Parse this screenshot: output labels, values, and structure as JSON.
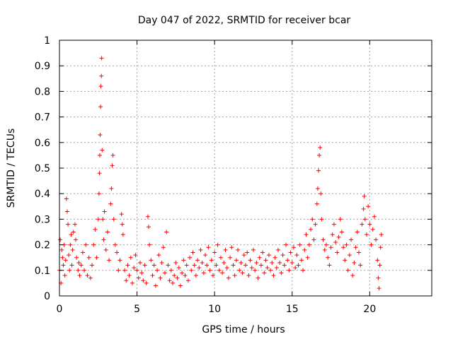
{
  "chart_data": {
    "type": "scatter",
    "title": "Day 047 of 2022, SRMTID for receiver bcar",
    "xlabel": "GPS time / hours",
    "ylabel": "SRMTID / TECUs",
    "xlim": [
      0,
      24
    ],
    "ylim": [
      0,
      1
    ],
    "xticks": [
      0,
      5,
      10,
      15,
      20
    ],
    "yticks": [
      0,
      0.1,
      0.2,
      0.3,
      0.4,
      0.5,
      0.6,
      0.7,
      0.8,
      0.9,
      1
    ],
    "grid": true,
    "marker": "+",
    "color": "#ff0000",
    "series": [
      {
        "name": "SRMTID",
        "points": [
          [
            0.0,
            0.1
          ],
          [
            0.05,
            0.22
          ],
          [
            0.1,
            0.05
          ],
          [
            0.15,
            0.18
          ],
          [
            0.2,
            0.15
          ],
          [
            0.25,
            0.12
          ],
          [
            0.3,
            0.2
          ],
          [
            0.35,
            0.08
          ],
          [
            0.4,
            0.14
          ],
          [
            0.45,
            0.38
          ],
          [
            0.5,
            0.33
          ],
          [
            0.55,
            0.28
          ],
          [
            0.6,
            0.16
          ],
          [
            0.65,
            0.1
          ],
          [
            0.7,
            0.2
          ],
          [
            0.75,
            0.24
          ],
          [
            0.8,
            0.12
          ],
          [
            0.85,
            0.18
          ],
          [
            0.9,
            0.25
          ],
          [
            1.0,
            0.28
          ],
          [
            1.05,
            0.22
          ],
          [
            1.1,
            0.15
          ],
          [
            1.2,
            0.1
          ],
          [
            1.25,
            0.13
          ],
          [
            1.3,
            0.08
          ],
          [
            1.4,
            0.12
          ],
          [
            1.5,
            0.17
          ],
          [
            1.6,
            0.1
          ],
          [
            1.7,
            0.2
          ],
          [
            1.8,
            0.08
          ],
          [
            1.9,
            0.15
          ],
          [
            2.0,
            0.07
          ],
          [
            2.1,
            0.12
          ],
          [
            2.2,
            0.2
          ],
          [
            2.3,
            0.26
          ],
          [
            2.4,
            0.15
          ],
          [
            2.5,
            0.3
          ],
          [
            2.55,
            0.4
          ],
          [
            2.58,
            0.48
          ],
          [
            2.6,
            0.55
          ],
          [
            2.62,
            0.63
          ],
          [
            2.65,
            0.74
          ],
          [
            2.67,
            0.82
          ],
          [
            2.7,
            0.86
          ],
          [
            2.72,
            0.93
          ],
          [
            2.75,
            0.57
          ],
          [
            2.8,
            0.3
          ],
          [
            2.85,
            0.22
          ],
          [
            2.9,
            0.33
          ],
          [
            3.0,
            0.18
          ],
          [
            3.1,
            0.25
          ],
          [
            3.2,
            0.14
          ],
          [
            3.3,
            0.36
          ],
          [
            3.35,
            0.42
          ],
          [
            3.4,
            0.51
          ],
          [
            3.45,
            0.55
          ],
          [
            3.5,
            0.3
          ],
          [
            3.6,
            0.2
          ],
          [
            3.7,
            0.17
          ],
          [
            3.8,
            0.1
          ],
          [
            3.9,
            0.14
          ],
          [
            4.0,
            0.32
          ],
          [
            4.05,
            0.28
          ],
          [
            4.1,
            0.24
          ],
          [
            4.2,
            0.1
          ],
          [
            4.3,
            0.06
          ],
          [
            4.4,
            0.12
          ],
          [
            4.5,
            0.08
          ],
          [
            4.6,
            0.15
          ],
          [
            4.7,
            0.05
          ],
          [
            4.8,
            0.11
          ],
          [
            4.9,
            0.16
          ],
          [
            5.0,
            0.1
          ],
          [
            5.1,
            0.07
          ],
          [
            5.2,
            0.13
          ],
          [
            5.3,
            0.09
          ],
          [
            5.4,
            0.06
          ],
          [
            5.5,
            0.12
          ],
          [
            5.6,
            0.05
          ],
          [
            5.7,
            0.31
          ],
          [
            5.75,
            0.27
          ],
          [
            5.8,
            0.2
          ],
          [
            5.9,
            0.14
          ],
          [
            6.0,
            0.08
          ],
          [
            6.1,
            0.12
          ],
          [
            6.2,
            0.04
          ],
          [
            6.3,
            0.1
          ],
          [
            6.4,
            0.16
          ],
          [
            6.5,
            0.07
          ],
          [
            6.6,
            0.13
          ],
          [
            6.7,
            0.19
          ],
          [
            6.8,
            0.09
          ],
          [
            6.9,
            0.25
          ],
          [
            7.0,
            0.12
          ],
          [
            7.1,
            0.06
          ],
          [
            7.2,
            0.1
          ],
          [
            7.3,
            0.05
          ],
          [
            7.4,
            0.08
          ],
          [
            7.5,
            0.13
          ],
          [
            7.6,
            0.07
          ],
          [
            7.7,
            0.11
          ],
          [
            7.8,
            0.04
          ],
          [
            7.9,
            0.09
          ],
          [
            8.0,
            0.14
          ],
          [
            8.1,
            0.08
          ],
          [
            8.2,
            0.12
          ],
          [
            8.3,
            0.06
          ],
          [
            8.4,
            0.15
          ],
          [
            8.5,
            0.1
          ],
          [
            8.6,
            0.17
          ],
          [
            8.7,
            0.12
          ],
          [
            8.8,
            0.08
          ],
          [
            8.9,
            0.14
          ],
          [
            9.0,
            0.11
          ],
          [
            9.1,
            0.18
          ],
          [
            9.2,
            0.13
          ],
          [
            9.3,
            0.09
          ],
          [
            9.4,
            0.16
          ],
          [
            9.5,
            0.12
          ],
          [
            9.6,
            0.19
          ],
          [
            9.7,
            0.1
          ],
          [
            9.8,
            0.14
          ],
          [
            9.9,
            0.08
          ],
          [
            10.0,
            0.17
          ],
          [
            10.1,
            0.12
          ],
          [
            10.2,
            0.2
          ],
          [
            10.3,
            0.1
          ],
          [
            10.4,
            0.15
          ],
          [
            10.5,
            0.09
          ],
          [
            10.6,
            0.13
          ],
          [
            10.7,
            0.18
          ],
          [
            10.8,
            0.11
          ],
          [
            10.9,
            0.07
          ],
          [
            11.0,
            0.15
          ],
          [
            11.1,
            0.19
          ],
          [
            11.2,
            0.12
          ],
          [
            11.3,
            0.08
          ],
          [
            11.4,
            0.14
          ],
          [
            11.5,
            0.18
          ],
          [
            11.6,
            0.1
          ],
          [
            11.7,
            0.13
          ],
          [
            11.8,
            0.09
          ],
          [
            11.9,
            0.16
          ],
          [
            12.0,
            0.12
          ],
          [
            12.1,
            0.17
          ],
          [
            12.2,
            0.08
          ],
          [
            12.3,
            0.14
          ],
          [
            12.4,
            0.11
          ],
          [
            12.5,
            0.18
          ],
          [
            12.6,
            0.1
          ],
          [
            12.7,
            0.13
          ],
          [
            12.8,
            0.07
          ],
          [
            12.9,
            0.15
          ],
          [
            13.0,
            0.12
          ],
          [
            13.1,
            0.17
          ],
          [
            13.2,
            0.09
          ],
          [
            13.3,
            0.14
          ],
          [
            13.4,
            0.11
          ],
          [
            13.5,
            0.16
          ],
          [
            13.6,
            0.1
          ],
          [
            13.7,
            0.13
          ],
          [
            13.8,
            0.08
          ],
          [
            13.9,
            0.15
          ],
          [
            14.0,
            0.11
          ],
          [
            14.1,
            0.18
          ],
          [
            14.2,
            0.13
          ],
          [
            14.3,
            0.09
          ],
          [
            14.4,
            0.16
          ],
          [
            14.5,
            0.12
          ],
          [
            14.6,
            0.2
          ],
          [
            14.7,
            0.14
          ],
          [
            14.8,
            0.1
          ],
          [
            14.9,
            0.17
          ],
          [
            15.0,
            0.13
          ],
          [
            15.1,
            0.19
          ],
          [
            15.2,
            0.11
          ],
          [
            15.3,
            0.16
          ],
          [
            15.4,
            0.12
          ],
          [
            15.5,
            0.2
          ],
          [
            15.6,
            0.14
          ],
          [
            15.7,
            0.1
          ],
          [
            15.8,
            0.18
          ],
          [
            15.9,
            0.24
          ],
          [
            16.0,
            0.15
          ],
          [
            16.1,
            0.2
          ],
          [
            16.2,
            0.26
          ],
          [
            16.3,
            0.3
          ],
          [
            16.4,
            0.22
          ],
          [
            16.5,
            0.28
          ],
          [
            16.6,
            0.36
          ],
          [
            16.65,
            0.42
          ],
          [
            16.7,
            0.49
          ],
          [
            16.75,
            0.55
          ],
          [
            16.8,
            0.58
          ],
          [
            16.85,
            0.4
          ],
          [
            16.9,
            0.3
          ],
          [
            17.0,
            0.22
          ],
          [
            17.1,
            0.18
          ],
          [
            17.2,
            0.2
          ],
          [
            17.3,
            0.15
          ],
          [
            17.4,
            0.12
          ],
          [
            17.5,
            0.19
          ],
          [
            17.6,
            0.24
          ],
          [
            17.7,
            0.28
          ],
          [
            17.8,
            0.21
          ],
          [
            17.9,
            0.17
          ],
          [
            18.0,
            0.23
          ],
          [
            18.1,
            0.3
          ],
          [
            18.2,
            0.25
          ],
          [
            18.3,
            0.19
          ],
          [
            18.4,
            0.14
          ],
          [
            18.5,
            0.2
          ],
          [
            18.6,
            0.1
          ],
          [
            18.7,
            0.16
          ],
          [
            18.8,
            0.22
          ],
          [
            18.9,
            0.08
          ],
          [
            19.0,
            0.13
          ],
          [
            19.1,
            0.19
          ],
          [
            19.2,
            0.25
          ],
          [
            19.3,
            0.17
          ],
          [
            19.4,
            0.12
          ],
          [
            19.5,
            0.28
          ],
          [
            19.6,
            0.34
          ],
          [
            19.65,
            0.39
          ],
          [
            19.7,
            0.3
          ],
          [
            19.8,
            0.24
          ],
          [
            19.9,
            0.35
          ],
          [
            20.0,
            0.28
          ],
          [
            20.1,
            0.2
          ],
          [
            20.2,
            0.26
          ],
          [
            20.3,
            0.31
          ],
          [
            20.4,
            0.22
          ],
          [
            20.5,
            0.14
          ],
          [
            20.55,
            0.07
          ],
          [
            20.6,
            0.03
          ],
          [
            20.65,
            0.12
          ],
          [
            20.7,
            0.19
          ],
          [
            20.75,
            0.24
          ]
        ]
      }
    ]
  }
}
